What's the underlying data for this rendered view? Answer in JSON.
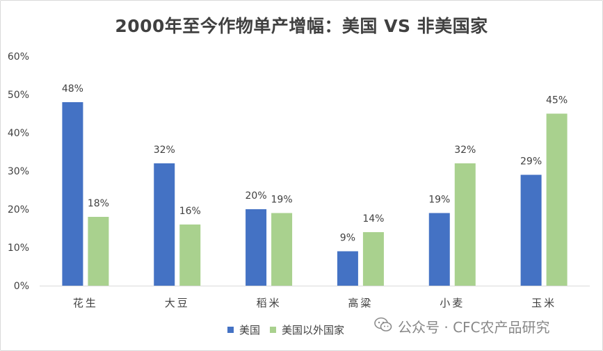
{
  "chart_data": {
    "type": "bar",
    "title": "2000年至今作物单产增幅：美国 VS 非美国家",
    "categories": [
      "花生",
      "大豆",
      "稻米",
      "高粱",
      "小麦",
      "玉米"
    ],
    "series": [
      {
        "name": "美国",
        "values": [
          48,
          32,
          20,
          9,
          19,
          29
        ],
        "labels": [
          "48%",
          "32%",
          "20%",
          "9%",
          "19%",
          "29%"
        ],
        "color": "#4472c4"
      },
      {
        "name": "美国以外国家",
        "values": [
          18,
          16,
          19,
          14,
          32,
          45
        ],
        "labels": [
          "18%",
          "16%",
          "19%",
          "14%",
          "32%",
          "45%"
        ],
        "color": "#a9d18e"
      }
    ],
    "ylim": [
      0,
      60
    ],
    "yticks": [
      "0%",
      "10%",
      "20%",
      "30%",
      "40%",
      "50%",
      "60%"
    ],
    "grid": false,
    "legend_position": "bottom"
  },
  "watermark": {
    "icon": "wechat-icon",
    "text": "公众号 · CFC农产品研究"
  },
  "colors": {
    "axis": "#d9d9d9",
    "text": "#404040"
  }
}
